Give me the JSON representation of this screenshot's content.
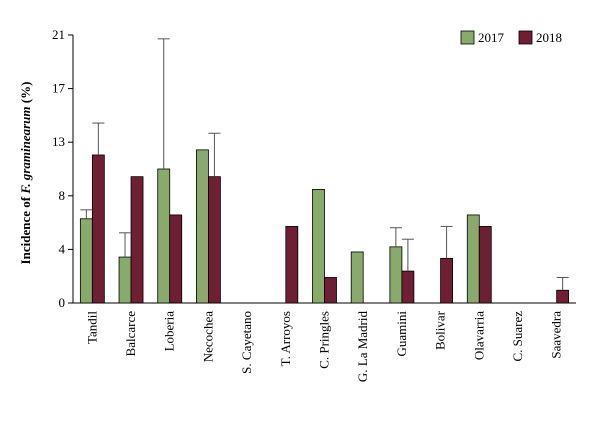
{
  "chart_data": {
    "type": "bar",
    "ylabel_prefix": "Incidence of ",
    "ylabel_italic": "F. graminearum",
    "ylabel_suffix": " (%)",
    "ylim": [
      0,
      21
    ],
    "yticks": [
      "0",
      "4",
      "8",
      "13",
      "17",
      "21"
    ],
    "ytick_values": [
      0,
      4.2,
      8.4,
      12.6,
      16.8,
      21
    ],
    "grid": false,
    "legend_position": "top-right",
    "categories": [
      "Tandil",
      "Balcarce",
      "Loberia",
      "Necochea",
      "S. Cayetano",
      "T. Arroyos",
      "C. Pringles",
      "G. La Madrid",
      "Guamini",
      "Bolivar",
      "Olavarria",
      "C. Suarez",
      "Saavedra"
    ],
    "series": [
      {
        "name": "2017",
        "color": "#8aaa6d",
        "values": [
          6.6,
          3.6,
          10.5,
          12.0,
          0,
          0,
          8.9,
          4.0,
          4.4,
          0,
          6.9,
          0,
          0
        ],
        "error_plus": [
          0.7,
          1.9,
          10.2,
          0,
          0,
          0,
          0,
          0,
          1.5,
          0,
          0,
          0,
          0
        ]
      },
      {
        "name": "2018",
        "color": "#6e1f33",
        "values": [
          11.6,
          9.9,
          6.9,
          9.9,
          0,
          6.0,
          2.0,
          0,
          2.5,
          3.5,
          6.0,
          0,
          1.0
        ],
        "error_plus": [
          2.5,
          0,
          0,
          3.4,
          0,
          0,
          0,
          0,
          2.5,
          2.5,
          0,
          0,
          1.0
        ]
      }
    ]
  }
}
